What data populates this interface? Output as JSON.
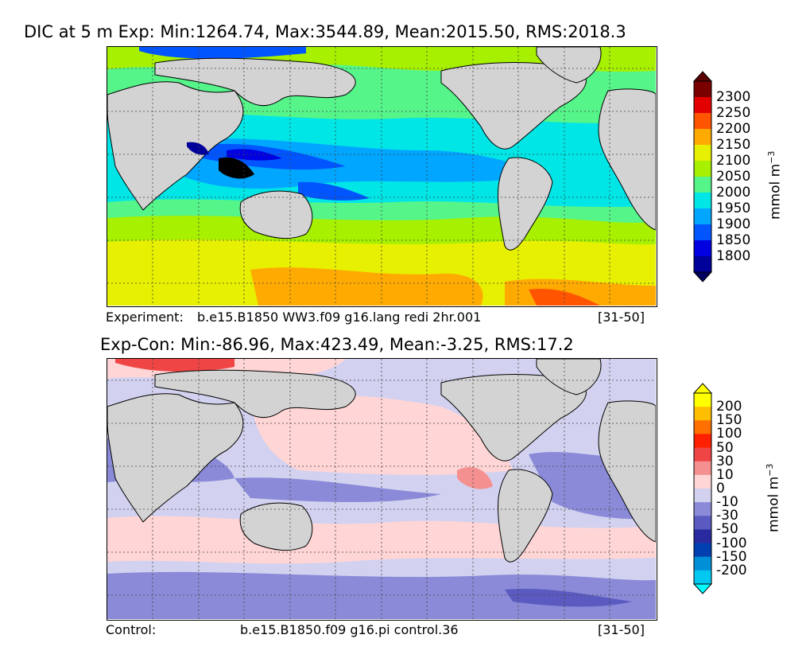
{
  "top_panel": {
    "title": "DIC at 5 m Exp: Min:1264.74, Max:3544.89, Mean:2015.50, RMS:2018.3",
    "caption_left": "Experiment:",
    "caption_case": "b.e15.B1850 WW3.f09 g16.lang redi 2hr.001",
    "caption_years": "[31-50]",
    "units": "mmol m",
    "units_exp": "−3",
    "levels": [
      "2300",
      "2250",
      "2200",
      "2150",
      "2100",
      "2050",
      "2000",
      "1950",
      "1900",
      "1850",
      "1800"
    ],
    "colors": [
      "#7a0000",
      "#e30000",
      "#ff5500",
      "#ffaa00",
      "#e6f000",
      "#a6f000",
      "#55f58a",
      "#00e6e6",
      "#00a6ff",
      "#0055ff",
      "#0000e0",
      "#00009a"
    ],
    "extend_top_color": "#5a0000",
    "extend_bottom_color": "#000060"
  },
  "bottom_panel": {
    "title": "Exp-Con: Min:-86.96, Max:423.49, Mean:-3.25, RMS:17.2",
    "caption_left": "Control:",
    "caption_case": "b.e15.B1850.f09 g16.pi control.36",
    "caption_years": "[31-50]",
    "units": "mmol m",
    "units_exp": "−3",
    "levels": [
      "200",
      "150",
      "100",
      "50",
      "30",
      "10",
      "0",
      "-10",
      "-30",
      "-50",
      "-100",
      "-150",
      "-200"
    ],
    "colors": [
      "#ffff00",
      "#ffbf00",
      "#ff7000",
      "#ff2000",
      "#f04545",
      "#f49090",
      "#ffd5d5",
      "#d2d2f0",
      "#8a8ad8",
      "#5a5ac0",
      "#2a2aa0",
      "#0040b0",
      "#0090d8",
      "#00c8f0"
    ],
    "extend_top_color": "#ffff00",
    "extend_bottom_color": "#00ffff"
  }
}
